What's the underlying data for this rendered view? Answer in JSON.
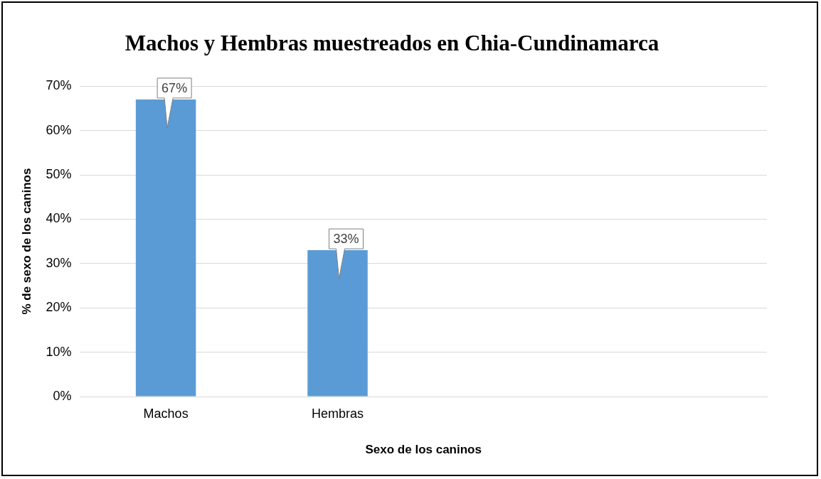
{
  "chart_data": {
    "type": "bar",
    "title": "Machos y Hembras muestreados en Chia-Cundinamarca",
    "xlabel": "Sexo de los caninos",
    "ylabel": "% de sexo de los caninos",
    "categories": [
      "Machos",
      "Hembras",
      null,
      null
    ],
    "values": [
      67,
      33,
      null,
      null
    ],
    "value_labels": [
      "67%",
      "33%",
      null,
      null
    ],
    "color": "#5b9bd5",
    "ylim": [
      0,
      70
    ],
    "yticks": [
      {
        "value": 0,
        "label": "0%"
      },
      {
        "value": 10,
        "label": "10%"
      },
      {
        "value": 20,
        "label": "20%"
      },
      {
        "value": 30,
        "label": "30%"
      },
      {
        "value": 40,
        "label": "40%"
      },
      {
        "value": 50,
        "label": "50%"
      },
      {
        "value": 60,
        "label": "60%"
      },
      {
        "value": 70,
        "label": "70%"
      }
    ],
    "grid": "y",
    "legend": false
  }
}
